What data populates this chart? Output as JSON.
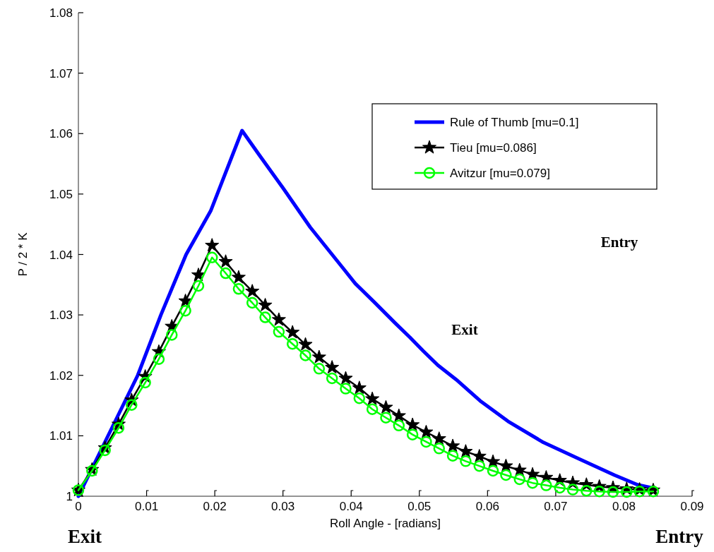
{
  "chart_data": {
    "type": "line",
    "xlabel": "Roll Angle - [radians]",
    "ylabel": "P / 2 * K",
    "xlim": [
      0,
      0.09
    ],
    "ylim": [
      1,
      1.08
    ],
    "xticks": [
      0,
      0.01,
      0.02,
      0.03,
      0.04,
      0.05,
      0.06,
      0.07,
      0.08,
      0.09
    ],
    "yticks": [
      1,
      1.01,
      1.02,
      1.03,
      1.04,
      1.05,
      1.06,
      1.07,
      1.08
    ],
    "grid": false,
    "legend": "top right",
    "series": [
      {
        "name": "Rule of Thumb [mu=0.1]",
        "color": "#0000ff",
        "marker": "none",
        "x": [
          0,
          0.0087,
          0.0121,
          0.0158,
          0.0194,
          0.024,
          0.0265,
          0.03,
          0.034,
          0.0389,
          0.0406,
          0.0434,
          0.0465,
          0.0486,
          0.0506,
          0.0527,
          0.0554,
          0.0589,
          0.063,
          0.0682,
          0.0734,
          0.0786,
          0.082,
          0.0845
        ],
        "values": [
          1.0,
          1.02,
          1.03,
          1.04,
          1.0472,
          1.0605,
          1.0565,
          1.051,
          1.0445,
          1.0376,
          1.0352,
          1.0321,
          1.0286,
          1.0263,
          1.024,
          1.0217,
          1.0193,
          1.0158,
          1.0124,
          1.0089,
          1.0062,
          1.0035,
          1.0019,
          1.0013
        ]
      },
      {
        "name": "Tieu [mu=0.086]",
        "color": "#000000",
        "marker": "star",
        "x": [
          0,
          0.002,
          0.0039,
          0.0059,
          0.0078,
          0.0098,
          0.0118,
          0.0137,
          0.0157,
          0.0176,
          0.0196,
          0.0216,
          0.0235,
          0.0255,
          0.0274,
          0.0294,
          0.0314,
          0.0333,
          0.0353,
          0.0372,
          0.0392,
          0.0412,
          0.0431,
          0.0451,
          0.047,
          0.049,
          0.051,
          0.0529,
          0.0549,
          0.0568,
          0.0588,
          0.0608,
          0.0627,
          0.0647,
          0.0666,
          0.0686,
          0.0706,
          0.0725,
          0.0745,
          0.0764,
          0.0784,
          0.0804,
          0.0823,
          0.0843
        ],
        "values": [
          1.001,
          1.0044,
          1.008,
          1.0119,
          1.0159,
          1.0198,
          1.0239,
          1.0281,
          1.0323,
          1.0366,
          1.0415,
          1.0388,
          1.0362,
          1.0339,
          1.0316,
          1.0292,
          1.0271,
          1.0251,
          1.023,
          1.0213,
          1.0195,
          1.0179,
          1.0161,
          1.0147,
          1.0133,
          1.0118,
          1.0106,
          1.0095,
          1.0083,
          1.0074,
          1.0066,
          1.0057,
          1.005,
          1.0043,
          1.0036,
          1.0031,
          1.0026,
          1.0022,
          1.0019,
          1.0016,
          1.0014,
          1.0012,
          1.0011,
          1.001
        ]
      },
      {
        "name": "Avitzur [mu=0.079]",
        "color": "#00ff00",
        "marker": "circle",
        "x": [
          0,
          0.002,
          0.0039,
          0.0059,
          0.0078,
          0.0098,
          0.0118,
          0.0137,
          0.0157,
          0.0176,
          0.0196,
          0.0216,
          0.0235,
          0.0255,
          0.0274,
          0.0294,
          0.0314,
          0.0333,
          0.0353,
          0.0372,
          0.0392,
          0.0412,
          0.0431,
          0.0451,
          0.047,
          0.049,
          0.051,
          0.0529,
          0.0549,
          0.0568,
          0.0588,
          0.0608,
          0.0627,
          0.0647,
          0.0666,
          0.0686,
          0.0706,
          0.0725,
          0.0745,
          0.0764,
          0.0784,
          0.0804,
          0.0823,
          0.0843
        ],
        "values": [
          1.001,
          1.0042,
          1.0076,
          1.0113,
          1.0151,
          1.0188,
          1.0227,
          1.0267,
          1.0307,
          1.0348,
          1.0395,
          1.0369,
          1.0343,
          1.032,
          1.0296,
          1.0272,
          1.0252,
          1.0233,
          1.0211,
          1.0195,
          1.0178,
          1.0162,
          1.0144,
          1.013,
          1.0117,
          1.0102,
          1.009,
          1.0079,
          1.0067,
          1.0058,
          1.005,
          1.0042,
          1.0035,
          1.0028,
          1.0022,
          1.0018,
          1.0014,
          1.0011,
          1.0009,
          1.0008,
          1.0007,
          1.0007,
          1.0008,
          1.0008
        ]
      }
    ],
    "annotations": [
      "Entry",
      "Exit",
      "Exit",
      "Entry"
    ]
  }
}
